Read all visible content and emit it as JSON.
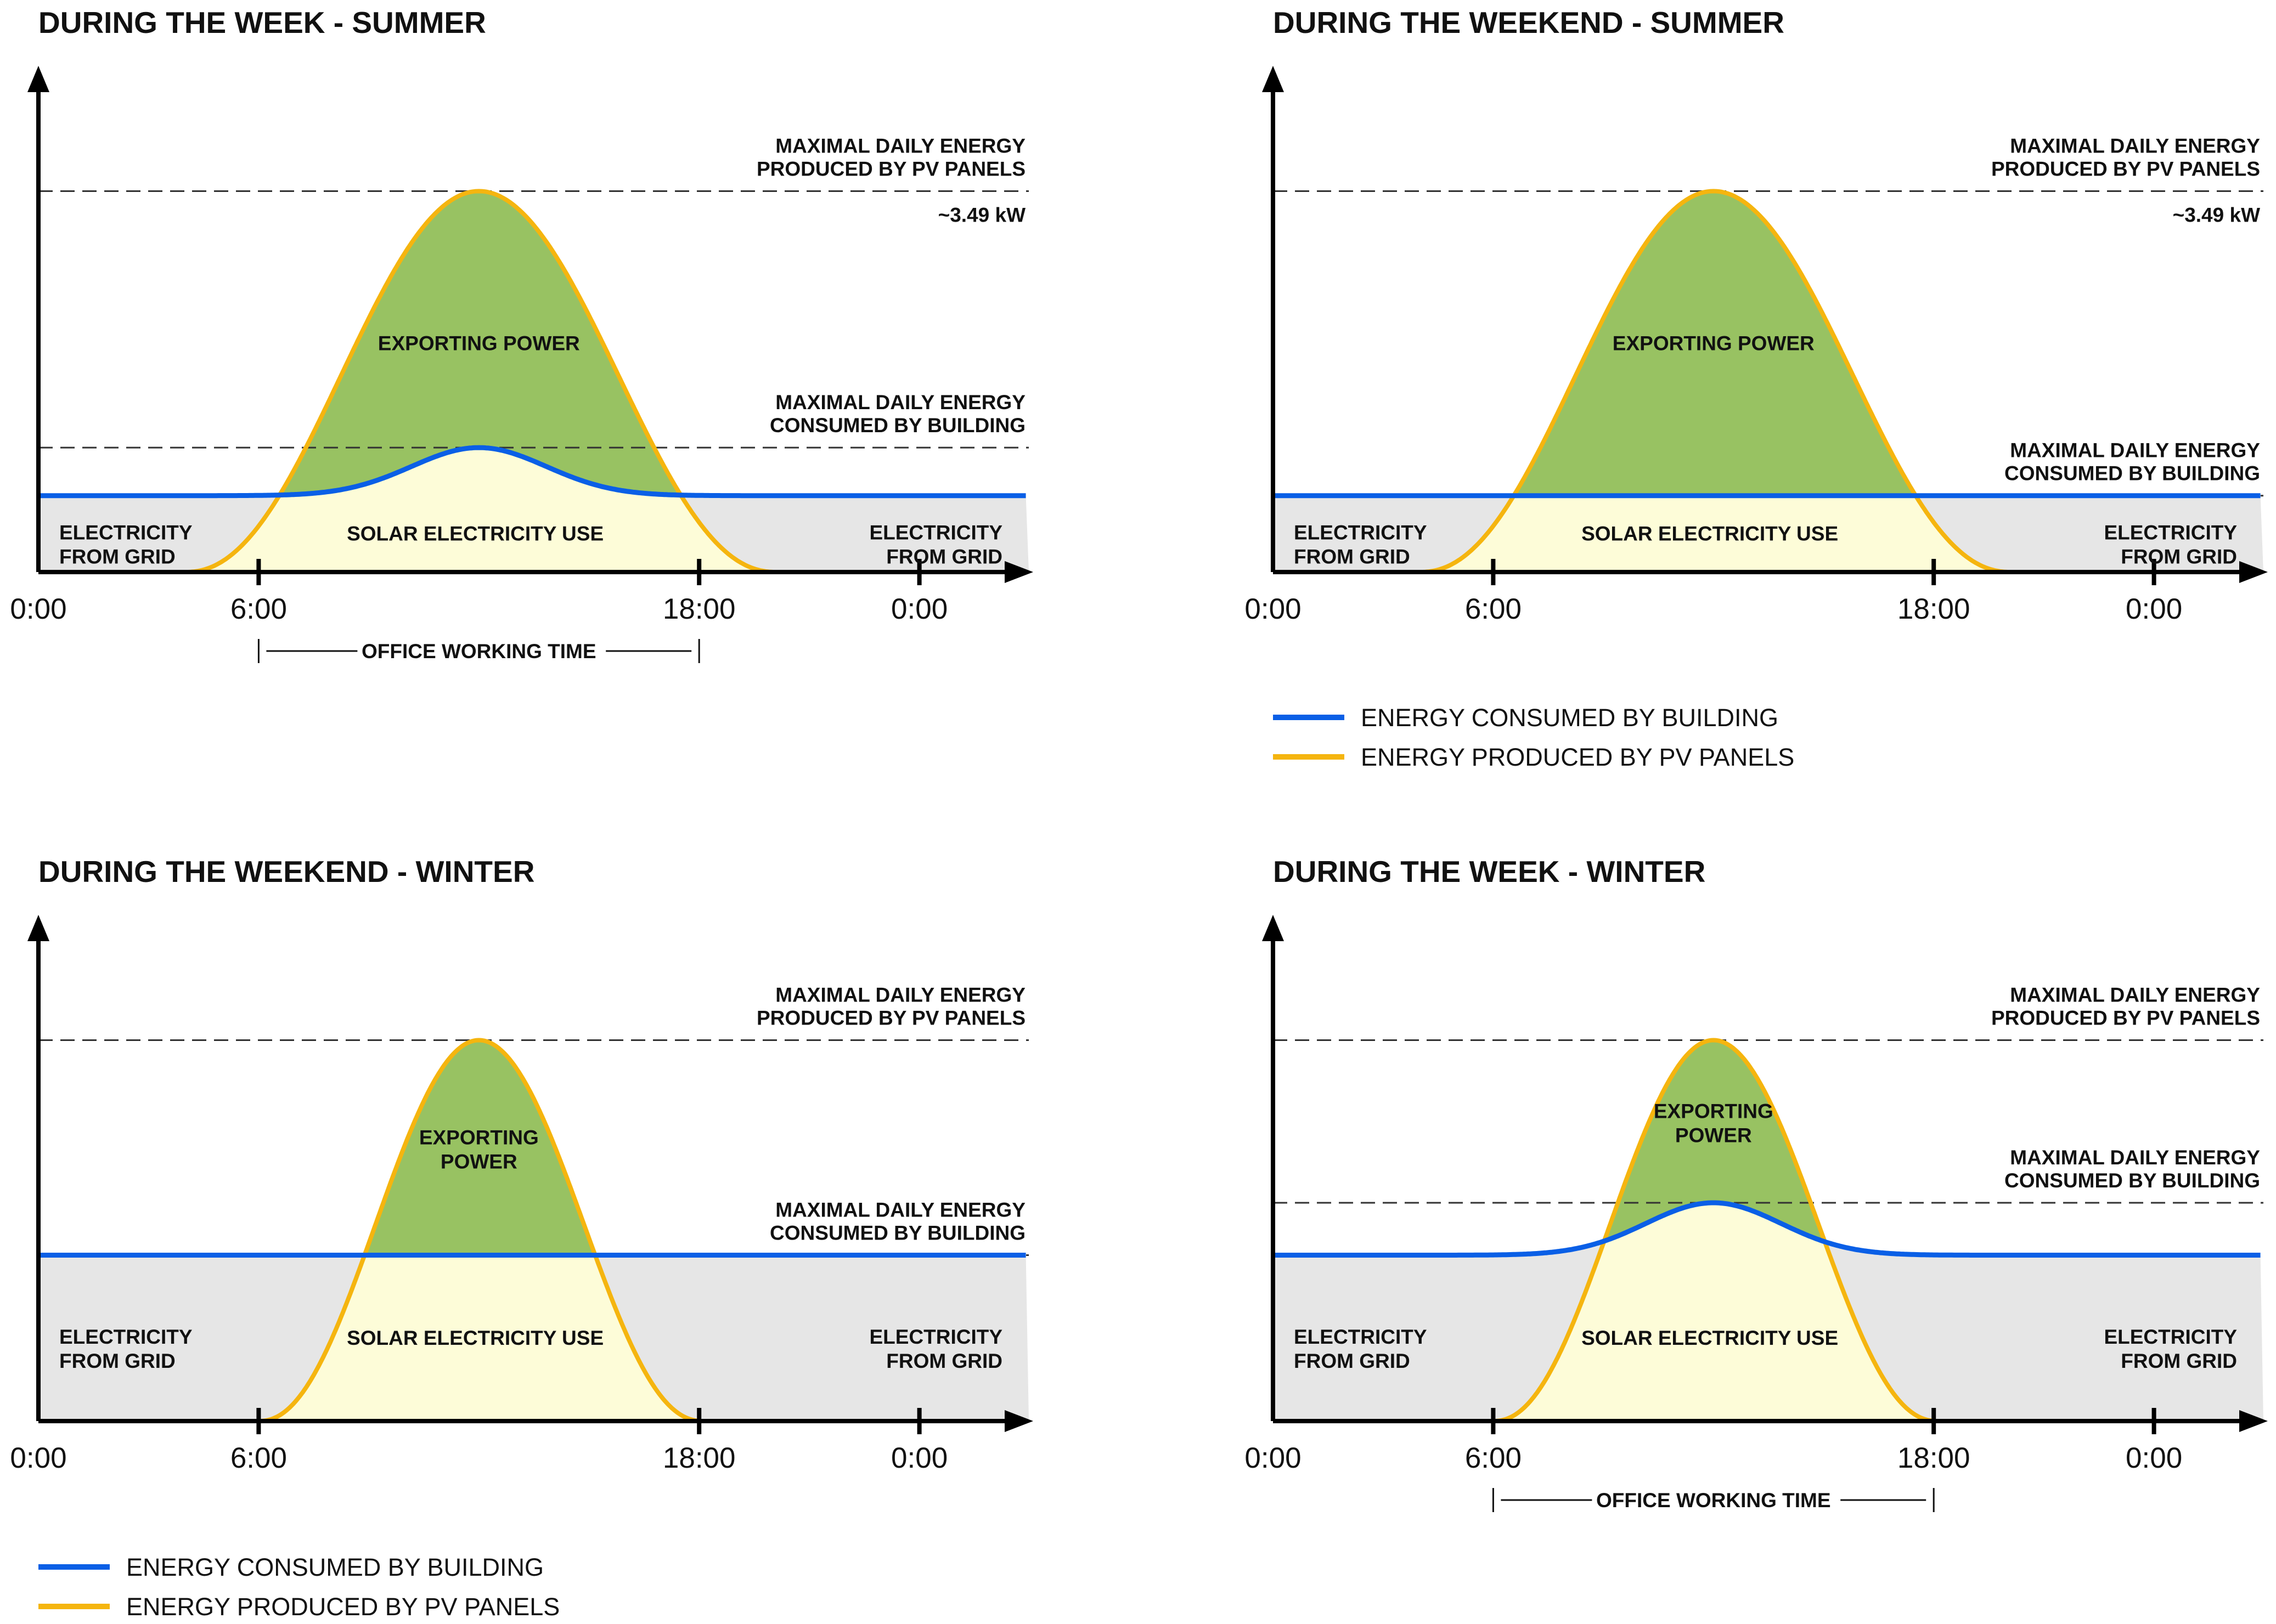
{
  "legend_top": {
    "consumed": "ENERGY CONSUMED BY BUILDING",
    "produced": "ENERGY PRODUCED BY PV PANELS"
  },
  "legend_bottom": {
    "consumed": "ENERGY CONSUMED BY BUILDING",
    "produced": "ENERGY PRODUCED BY PV PANELS"
  },
  "colors": {
    "consumed": "#0a5fe6",
    "produced": "#f5b50f",
    "export_fill": "#98c262",
    "solar_use_fill": "#fdfcd8",
    "grid_fill": "#e6e6e6",
    "axis": "#000000"
  },
  "chart_data": [
    {
      "type": "area",
      "title": "DURING THE WEEK - SUMMER",
      "x_ticks": [
        "0:00",
        "6:00",
        "18:00",
        "0:00"
      ],
      "labels": {
        "max_produced_1": "MAXIMAL DAILY ENERGY",
        "max_produced_2": "PRODUCED BY PV PANELS",
        "peak_value": "~3.49 kW",
        "max_consumed_1": "MAXIMAL DAILY ENERGY",
        "max_consumed_2": "CONSUMED BY BUILDING",
        "export_1": "EXPORTING POWER",
        "export_2": "",
        "solar_use": "SOLAR ELECTRICITY USE",
        "grid_left_1": "ELECTRICITY",
        "grid_left_2": "FROM GRID",
        "grid_right_1": "ELECTRICITY",
        "grid_right_2": "FROM GRID",
        "office": "OFFICE WORKING TIME"
      },
      "production": {
        "start_hour": 4,
        "peak_hour": 12,
        "end_hour": 20.1,
        "peak": 3.49
      },
      "consumption": {
        "base": 0.7,
        "peak": 1.14,
        "bump_center": 12,
        "bump_width": 2.6
      },
      "office_hours": [
        6,
        18
      ],
      "x_range": [
        0,
        27
      ],
      "y_range": [
        0,
        4.5
      ]
    },
    {
      "type": "area",
      "title": "DURING THE WEEKEND - SUMMER",
      "x_ticks": [
        "0:00",
        "6:00",
        "18:00",
        "0:00"
      ],
      "labels": {
        "max_produced_1": "MAXIMAL DAILY ENERGY",
        "max_produced_2": "PRODUCED BY PV PANELS",
        "peak_value": "~3.49 kW",
        "max_consumed_1": "MAXIMAL DAILY ENERGY",
        "max_consumed_2": "CONSUMED BY BUILDING",
        "export_1": "EXPORTING POWER",
        "export_2": "",
        "solar_use": "SOLAR ELECTRICITY USE",
        "grid_left_1": "ELECTRICITY",
        "grid_left_2": "FROM GRID",
        "grid_right_1": "ELECTRICITY",
        "grid_right_2": "FROM GRID",
        "office": ""
      },
      "production": {
        "start_hour": 4,
        "peak_hour": 12,
        "end_hour": 20.1,
        "peak": 3.49
      },
      "consumption": {
        "base": 0.7,
        "peak": 0.7,
        "bump_center": 12,
        "bump_width": 2.6
      },
      "office_hours": null,
      "x_range": [
        0,
        27
      ],
      "y_range": [
        0,
        4.5
      ]
    },
    {
      "type": "area",
      "title": "DURING THE WEEKEND - WINTER",
      "x_ticks": [
        "0:00",
        "6:00",
        "18:00",
        "0:00"
      ],
      "labels": {
        "max_produced_1": "MAXIMAL DAILY ENERGY",
        "max_produced_2": "PRODUCED BY PV PANELS",
        "peak_value": "",
        "max_consumed_1": "MAXIMAL DAILY ENERGY",
        "max_consumed_2": "CONSUMED BY BUILDING",
        "export_1": "EXPORTING",
        "export_2": "POWER",
        "solar_use": "SOLAR ELECTRICITY USE",
        "grid_left_1": "ELECTRICITY",
        "grid_left_2": "FROM GRID",
        "grid_right_1": "ELECTRICITY",
        "grid_right_2": "FROM GRID",
        "office": ""
      },
      "production": {
        "start_hour": 6,
        "peak_hour": 12,
        "end_hour": 18.1,
        "peak": 3.49
      },
      "consumption": {
        "base": 1.52,
        "peak": 1.52,
        "bump_center": 12,
        "bump_width": 2.6
      },
      "office_hours": null,
      "x_range": [
        0,
        27
      ],
      "y_range": [
        0,
        4.5
      ]
    },
    {
      "type": "area",
      "title": "DURING THE WEEK - WINTER",
      "x_ticks": [
        "0:00",
        "6:00",
        "18:00",
        "0:00"
      ],
      "labels": {
        "max_produced_1": "MAXIMAL DAILY ENERGY",
        "max_produced_2": "PRODUCED BY PV PANELS",
        "peak_value": "",
        "max_consumed_1": "MAXIMAL DAILY ENERGY",
        "max_consumed_2": "CONSUMED BY BUILDING",
        "export_1": "EXPORTING",
        "export_2": "POWER",
        "solar_use": "SOLAR ELECTRICITY USE",
        "grid_left_1": "ELECTRICITY",
        "grid_left_2": "FROM GRID",
        "grid_right_1": "ELECTRICITY",
        "grid_right_2": "FROM GRID",
        "office": "OFFICE WORKING TIME"
      },
      "production": {
        "start_hour": 6,
        "peak_hour": 12,
        "end_hour": 18.1,
        "peak": 3.49
      },
      "consumption": {
        "base": 1.52,
        "peak": 2.0,
        "bump_center": 12,
        "bump_width": 2.6
      },
      "office_hours": [
        6,
        18
      ],
      "x_range": [
        0,
        27
      ],
      "y_range": [
        0,
        4.5
      ]
    }
  ]
}
